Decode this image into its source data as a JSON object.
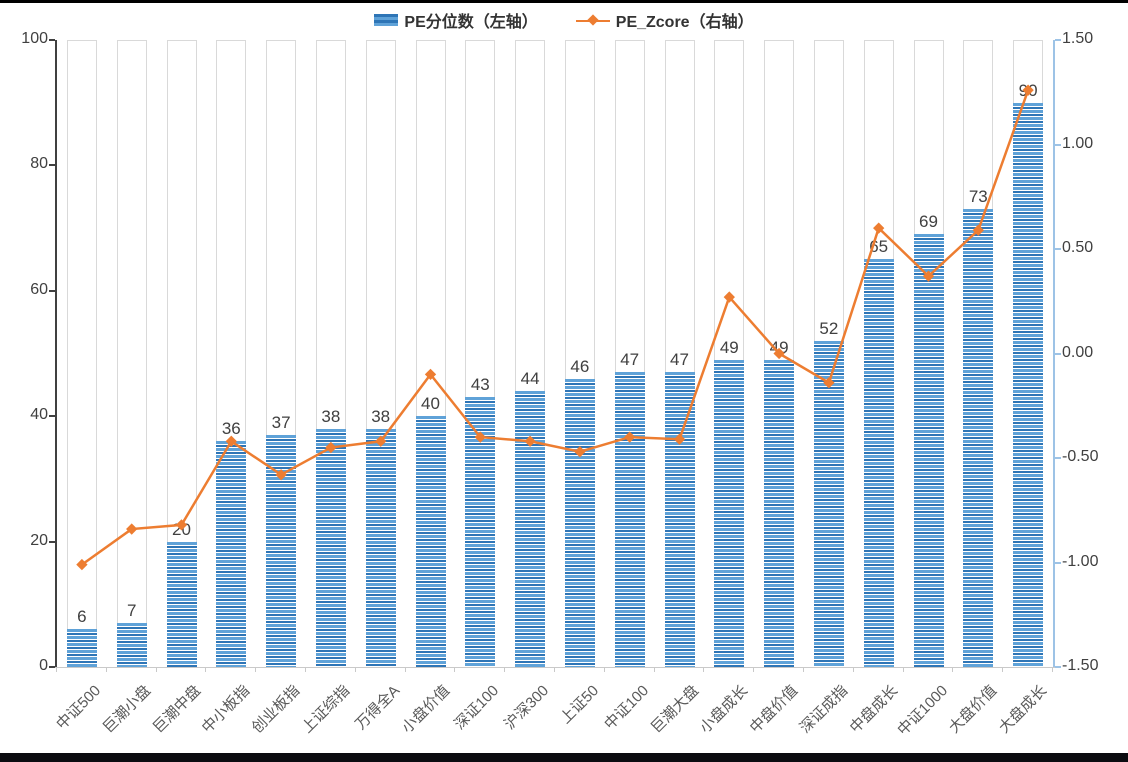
{
  "page": {
    "top_border_color": "#000000",
    "bottom_bar_color": "#0b0b10",
    "background": "#ffffff"
  },
  "legend": {
    "position": "top-center",
    "items": [
      {
        "label": "PE分位数（左轴）",
        "icon": "striped-bar-icon"
      },
      {
        "label": "PE_Zcore（右轴）",
        "icon": "line-diamond-icon"
      }
    ]
  },
  "chart_data": {
    "type": "combo-bar-line",
    "title": "",
    "categories": [
      "中证500",
      "巨潮小盘",
      "巨潮中盘",
      "中小板指",
      "创业板指",
      "上证综指",
      "万得全A",
      "小盘价值",
      "深证100",
      "沪深300",
      "上证50",
      "中证100",
      "巨潮大盘",
      "小盘成长",
      "中盘价值",
      "深证成指",
      "中盘成长",
      "中证1000",
      "大盘价值",
      "大盘成长"
    ],
    "series": [
      {
        "name": "PE分位数（左轴）",
        "type": "bar",
        "axis": "left",
        "values": [
          6,
          7,
          20,
          36,
          37,
          38,
          38,
          40,
          43,
          44,
          46,
          47,
          47,
          49,
          49,
          52,
          65,
          69,
          73,
          90
        ],
        "data_labels": [
          "6",
          "7",
          "20",
          "36",
          "37",
          "38",
          "38",
          "40",
          "43",
          "44",
          "46",
          "47",
          "47",
          "49",
          "49",
          "52",
          "65",
          "69",
          "73",
          "90"
        ]
      },
      {
        "name": "PE_Zcore（右轴）",
        "type": "line",
        "axis": "right",
        "values": [
          -1.01,
          -0.84,
          -0.82,
          -0.42,
          -0.58,
          -0.45,
          -0.42,
          -0.1,
          -0.4,
          -0.42,
          -0.47,
          -0.4,
          -0.41,
          0.27,
          0.0,
          -0.14,
          0.6,
          0.37,
          0.59,
          1.26
        ]
      }
    ],
    "left_axis": {
      "min": 0,
      "max": 100,
      "step": 20,
      "tick_labels": [
        "0",
        "20",
        "40",
        "60",
        "80",
        "100"
      ]
    },
    "right_axis": {
      "min": -1.5,
      "max": 1.5,
      "step": 0.5,
      "tick_labels": [
        "-1.50",
        "-1.00",
        "-0.50",
        "0.00",
        "0.50",
        "1.00",
        "1.50"
      ]
    },
    "grid": false,
    "bar_data_labels_shown": true,
    "backdrop_bars_to_max": true,
    "colors": {
      "bar_stripe_dark": "#2e75b6",
      "bar_stripe_mid": "#5fa2d8",
      "bar_stripe_gap": "#ffffff",
      "line": "#ed7d31",
      "backdrop_border": "#d9d9d9",
      "axis_left_line": "#404040",
      "axis_right_line": "#9dc3e6",
      "axis_bottom_line": "#c9c9c9",
      "value_label_text": "#404040",
      "axis_tick_text": "#404040",
      "category_text": "#595959"
    }
  }
}
